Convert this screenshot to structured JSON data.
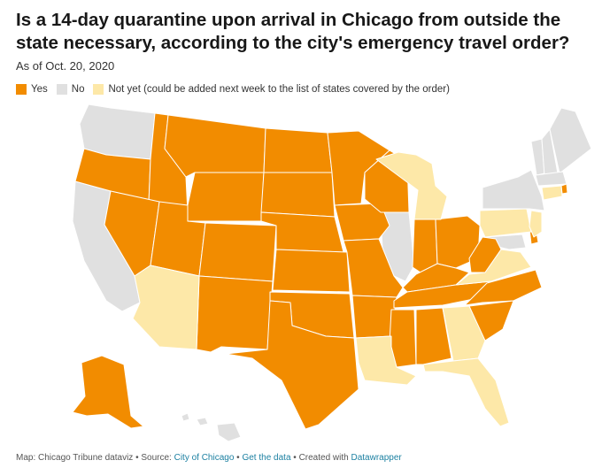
{
  "header": {
    "title": "Is a 14-day quarantine upon arrival in Chicago from outside the state necessary, according to the city's emergency travel order?",
    "subtitle": "As of Oct. 20, 2020"
  },
  "legend": [
    {
      "label": "Yes",
      "color": "#f28c00"
    },
    {
      "label": "No",
      "color": "#e0e0e0"
    },
    {
      "label": "Not yet (could be added next week to the list of states covered by the order)",
      "color": "#fde8a8"
    }
  ],
  "colors": {
    "yes": "#f28c00",
    "no": "#e0e0e0",
    "not_yet": "#fde8a8"
  },
  "footer": {
    "prefix": "Map: Chicago Tribune dataviz • Source: ",
    "source_link": "City of Chicago",
    "sep1": " • ",
    "data_link": "Get the data",
    "sep2": " • Created with ",
    "tool_link": "Datawrapper"
  }
}
